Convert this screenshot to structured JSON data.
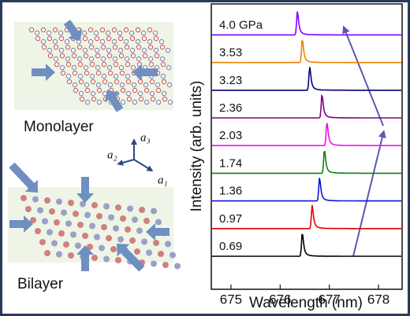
{
  "diagram": {
    "monolayer": "Monolayer",
    "bilayer": "Bilayer",
    "a1": "a₁",
    "a2": "a₂",
    "a3": "a₃"
  },
  "chart_data": {
    "type": "line",
    "xlabel": "Wavelength (nm)",
    "ylabel": "Intensity (arb. units)",
    "xlim": [
      674.6,
      678.48
    ],
    "xticks": [
      675,
      676,
      677,
      678
    ],
    "series": [
      {
        "name": "0.69",
        "color": "#000000",
        "peak": 676.45
      },
      {
        "name": "0.97",
        "color": "#e00000",
        "peak": 676.65
      },
      {
        "name": "1.36",
        "color": "#1010e0",
        "peak": 676.8
      },
      {
        "name": "1.74",
        "color": "#108010",
        "peak": 676.9
      },
      {
        "name": "2.03",
        "color": "#f010f0",
        "peak": 676.95
      },
      {
        "name": "2.36",
        "color": "#800080",
        "peak": 676.85
      },
      {
        "name": "3.23",
        "color": "#000080",
        "peak": 676.6
      },
      {
        "name": "3.53",
        "color": "#f08000",
        "peak": 676.45
      },
      {
        "name": "4.0 GPa",
        "color": "#8000ff",
        "peak": 676.35
      }
    ]
  }
}
